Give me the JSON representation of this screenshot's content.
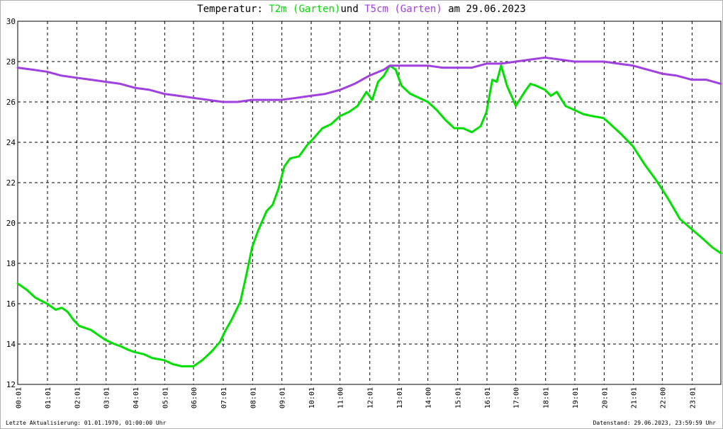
{
  "title": {
    "prefix": "Temperatur:",
    "series1": "T2m (Garten)",
    "middle": "und",
    "series2": "T5cm (Garten)",
    "suffix": "am 29.06.2023"
  },
  "footer": {
    "left": "Letzte Aktualisierung: 01.01.1970, 01:00:00 Uhr",
    "right": "Datenstand: 29.06.2023, 23:59:59 Uhr"
  },
  "colors": {
    "t2m": "#00e000",
    "t5cm": "#a040e0",
    "grid": "#000000"
  },
  "chart_data": {
    "type": "line",
    "title": "Temperatur: T2m (Garten) und T5cm (Garten) am 29.06.2023",
    "xlabel": "",
    "ylabel": "",
    "ylim": [
      12,
      30
    ],
    "yticks": [
      "12",
      "14",
      "16",
      "18",
      "20",
      "22",
      "24",
      "26",
      "28",
      "30"
    ],
    "xlim": [
      0,
      24
    ],
    "xticks": [
      "00:01",
      "01:01",
      "02:01",
      "03:01",
      "04:01",
      "05:01",
      "06:00",
      "07:01",
      "08:01",
      "09:01",
      "10:01",
      "11:00",
      "12:01",
      "13:01",
      "14:00",
      "15:01",
      "16:01",
      "17:00",
      "18:01",
      "19:01",
      "20:01",
      "21:01",
      "22:00",
      "23:01"
    ],
    "grid": true,
    "series": [
      {
        "name": "T2m (Garten)",
        "x": [
          0,
          0.3,
          0.6,
          1.0,
          1.3,
          1.5,
          1.7,
          1.9,
          2.1,
          2.5,
          2.8,
          3.0,
          3.3,
          3.5,
          3.8,
          4.0,
          4.3,
          4.6,
          5.0,
          5.3,
          5.6,
          6.0,
          6.3,
          6.6,
          6.9,
          7.1,
          7.3,
          7.6,
          7.8,
          8.0,
          8.2,
          8.5,
          8.7,
          8.9,
          9.1,
          9.3,
          9.6,
          9.9,
          10.1,
          10.4,
          10.7,
          11.0,
          11.3,
          11.6,
          11.9,
          12.1,
          12.3,
          12.5,
          12.7,
          12.9,
          13.1,
          13.4,
          13.7,
          14.0,
          14.3,
          14.6,
          14.9,
          15.2,
          15.5,
          15.8,
          16.0,
          16.2,
          16.35,
          16.5,
          16.7,
          17.0,
          17.3,
          17.5,
          17.7,
          18.0,
          18.2,
          18.4,
          18.7,
          19.0,
          19.3,
          19.6,
          20.0,
          20.3,
          20.6,
          21.0,
          21.4,
          21.8,
          22.2,
          22.6,
          23.0,
          23.4,
          23.7,
          24.0
        ],
        "y": [
          17.0,
          16.7,
          16.3,
          16.0,
          15.7,
          15.8,
          15.6,
          15.2,
          14.9,
          14.7,
          14.4,
          14.2,
          14.0,
          13.9,
          13.7,
          13.6,
          13.5,
          13.3,
          13.2,
          13.0,
          12.9,
          12.9,
          13.2,
          13.6,
          14.1,
          14.7,
          15.2,
          16.1,
          17.4,
          18.8,
          19.6,
          20.6,
          20.9,
          21.7,
          22.8,
          23.2,
          23.3,
          23.9,
          24.2,
          24.7,
          24.9,
          25.3,
          25.5,
          25.8,
          26.5,
          26.1,
          27.0,
          27.3,
          27.8,
          27.6,
          26.8,
          26.4,
          26.2,
          26.0,
          25.6,
          25.1,
          24.7,
          24.7,
          24.5,
          24.8,
          25.5,
          27.1,
          27.0,
          27.8,
          26.8,
          25.8,
          26.5,
          26.9,
          26.8,
          26.6,
          26.3,
          26.5,
          25.8,
          25.6,
          25.4,
          25.3,
          25.2,
          24.8,
          24.4,
          23.8,
          22.9,
          22.1,
          21.2,
          20.2,
          19.7,
          19.2,
          18.8,
          18.5
        ]
      },
      {
        "name": "T5cm (Garten)",
        "x": [
          0,
          0.5,
          1.0,
          1.5,
          2.0,
          2.5,
          3.0,
          3.5,
          4.0,
          4.5,
          5.0,
          5.5,
          6.0,
          6.5,
          7.0,
          7.5,
          8.0,
          8.5,
          9.0,
          9.5,
          10.0,
          10.5,
          11.0,
          11.5,
          12.0,
          12.5,
          12.7,
          13.0,
          13.5,
          14.0,
          14.5,
          15.0,
          15.5,
          16.0,
          16.5,
          17.0,
          17.5,
          18.0,
          18.5,
          19.0,
          19.5,
          20.0,
          20.5,
          21.0,
          21.5,
          22.0,
          22.5,
          23.0,
          23.5,
          24.0
        ],
        "y": [
          27.7,
          27.6,
          27.5,
          27.3,
          27.2,
          27.1,
          27.0,
          26.9,
          26.7,
          26.6,
          26.4,
          26.3,
          26.2,
          26.1,
          26.0,
          26.0,
          26.1,
          26.1,
          26.1,
          26.2,
          26.3,
          26.4,
          26.6,
          26.9,
          27.3,
          27.6,
          27.8,
          27.8,
          27.8,
          27.8,
          27.7,
          27.7,
          27.7,
          27.9,
          27.9,
          28.0,
          28.1,
          28.2,
          28.1,
          28.0,
          28.0,
          28.0,
          27.9,
          27.8,
          27.6,
          27.4,
          27.3,
          27.1,
          27.1,
          26.9
        ]
      }
    ]
  }
}
